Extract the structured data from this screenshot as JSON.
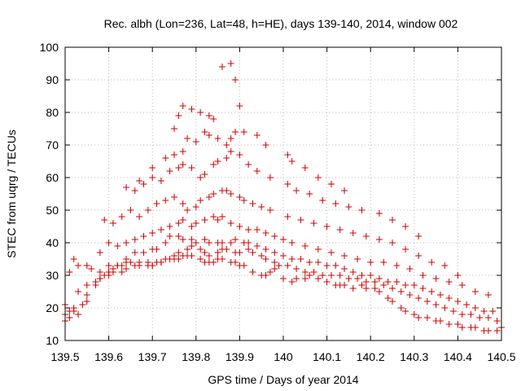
{
  "chart_data": {
    "type": "scatter",
    "title": "Rec. albh (Lon=236, Lat=48, h=HE), days 139-140, 2014, window 002",
    "xlabel": "GPS time / Days of year 2014",
    "ylabel": "STEC from uqrg / TECUs",
    "xlim": [
      139.5,
      140.5
    ],
    "ylim": [
      10,
      100
    ],
    "xticks": [
      139.5,
      139.6,
      139.7,
      139.8,
      139.9,
      140,
      140.1,
      140.2,
      140.3,
      140.4,
      140.5
    ],
    "xtick_labels": [
      "139.5",
      "139.6",
      "139.7",
      "139.8",
      "139.9",
      "140",
      "140.1",
      "140.2",
      "140.3",
      "140.4",
      "140.5"
    ],
    "yticks": [
      10,
      20,
      30,
      40,
      50,
      60,
      70,
      80,
      90,
      100
    ],
    "ytick_labels": [
      "10",
      "20",
      "30",
      "40",
      "50",
      "60",
      "70",
      "80",
      "90",
      "100"
    ],
    "grid": true,
    "marker": "+",
    "color": "#cc0000",
    "series": [
      {
        "x": [
          139.5,
          139.5,
          139.51,
          139.51,
          139.52,
          139.53,
          139.54,
          139.55,
          139.55,
          139.57,
          139.58,
          139.59,
          139.6,
          139.6,
          139.61,
          139.62,
          139.63,
          139.64,
          139.65,
          139.67,
          139.69,
          139.7,
          139.71,
          139.72,
          139.74,
          139.75,
          139.76,
          139.77,
          139.78,
          139.79,
          139.81,
          139.82,
          139.83,
          139.84,
          139.85,
          139.86,
          139.88,
          139.89,
          139.9,
          139.91,
          139.93,
          139.95,
          139.96,
          139.97,
          139.98,
          140.0,
          140.02,
          140.03,
          140.05,
          140.06,
          140.08,
          140.1,
          140.12,
          140.13,
          140.14,
          140.16,
          140.18,
          140.19,
          140.21,
          140.22,
          140.24,
          140.25,
          140.27,
          140.28,
          140.3,
          140.31,
          140.33,
          140.35,
          140.36,
          140.38,
          140.4,
          140.41,
          140.43,
          140.44,
          140.46,
          140.47,
          140.49,
          140.5,
          139.5,
          139.52,
          139.53,
          139.55,
          139.57,
          139.58,
          139.6,
          139.61,
          139.63,
          139.64,
          139.66,
          139.67,
          139.69,
          139.7,
          139.72,
          139.73,
          139.75,
          139.76,
          139.78,
          139.79,
          139.81,
          139.82,
          139.83,
          139.85,
          139.86,
          139.87,
          139.89,
          139.9,
          139.92,
          139.93,
          139.95,
          139.96,
          139.98,
          139.99,
          140.01,
          140.03,
          140.05,
          140.07,
          140.09,
          140.11,
          140.13,
          140.15,
          140.17,
          140.19,
          140.21,
          140.23,
          140.25,
          140.27,
          140.29,
          140.31,
          140.33,
          140.35,
          140.37,
          140.39,
          140.41,
          140.43,
          140.45,
          140.47,
          140.49,
          139.51,
          139.53,
          139.56,
          139.58,
          139.6,
          139.62,
          139.64,
          139.66,
          139.68,
          139.7,
          139.71,
          139.73,
          139.74,
          139.76,
          139.77,
          139.79,
          139.8,
          139.82,
          139.83,
          139.85,
          139.86,
          139.88,
          139.89,
          139.91,
          139.92,
          139.94,
          139.96,
          139.98,
          140.0,
          140.02,
          140.04,
          140.06,
          140.08,
          140.1,
          140.12,
          140.14,
          140.16,
          140.18,
          140.2,
          140.22,
          140.24,
          140.26,
          140.28,
          140.3,
          140.32,
          140.34,
          140.36,
          140.38,
          140.4,
          140.42,
          140.44,
          140.46,
          140.48,
          139.52,
          139.55,
          139.58,
          139.6,
          139.62,
          139.64,
          139.66,
          139.68,
          139.7,
          139.72,
          139.74,
          139.76,
          139.77,
          139.79,
          139.8,
          139.82,
          139.84,
          139.85,
          139.86,
          139.88,
          139.9,
          139.92,
          139.94,
          139.96,
          139.98,
          140.0,
          140.02,
          140.05,
          140.08,
          140.11,
          140.14,
          140.17,
          140.2,
          140.23,
          140.26,
          140.29,
          140.32,
          140.35,
          140.38,
          140.41,
          140.44,
          140.47,
          139.59,
          139.61,
          139.63,
          139.65,
          139.67,
          139.69,
          139.71,
          139.73,
          139.75,
          139.77,
          139.78,
          139.8,
          139.81,
          139.83,
          139.84,
          139.86,
          139.87,
          139.88,
          139.9,
          139.91,
          139.93,
          139.95,
          139.97,
          140.01,
          140.04,
          140.07,
          140.1,
          140.13,
          140.16,
          140.19,
          140.22,
          140.25,
          140.28,
          140.31,
          140.34,
          140.37,
          140.4,
          139.64,
          139.66,
          139.68,
          139.7,
          139.72,
          139.74,
          139.76,
          139.77,
          139.79,
          139.81,
          139.82,
          139.84,
          139.85,
          139.87,
          139.88,
          139.9,
          139.92,
          139.94,
          139.97,
          140.01,
          140.03,
          140.06,
          140.09,
          140.12,
          140.15,
          140.18,
          140.22,
          140.25,
          140.28,
          140.31,
          139.67,
          139.7,
          139.73,
          139.75,
          139.77,
          139.78,
          139.8,
          139.82,
          139.83,
          139.85,
          139.87,
          139.88,
          139.89,
          139.91,
          139.94,
          139.96,
          140.01,
          140.02,
          140.05,
          140.08,
          140.11,
          140.14,
          139.75,
          139.76,
          139.77,
          139.79,
          139.81,
          139.83,
          139.84,
          139.86,
          139.88,
          139.89,
          139.9
        ],
        "y": [
          18,
          16,
          19,
          17,
          20,
          18,
          21,
          22,
          24,
          27,
          29,
          30,
          31,
          31,
          32,
          33,
          33,
          34,
          34,
          34,
          33,
          33,
          34,
          34,
          35,
          35,
          35,
          36,
          36,
          36,
          35,
          34,
          34,
          34,
          35,
          35,
          34,
          34,
          33,
          33,
          31,
          30,
          30,
          31,
          32,
          29,
          28,
          29,
          29,
          30,
          29,
          28,
          27,
          27,
          27,
          26,
          27,
          26,
          26,
          25,
          23,
          22,
          20,
          19,
          18,
          17,
          17,
          16,
          16,
          15,
          15,
          14,
          14,
          14,
          13,
          13,
          13,
          14,
          21,
          19,
          25,
          27,
          28,
          29,
          30,
          31,
          31,
          32,
          33,
          33,
          34,
          33,
          34,
          35,
          36,
          37,
          38,
          39,
          38,
          37,
          36,
          37,
          38,
          38,
          37,
          37,
          38,
          37,
          36,
          35,
          34,
          33,
          33,
          32,
          31,
          31,
          30,
          30,
          30,
          29,
          29,
          28,
          28,
          27,
          26,
          25,
          24,
          23,
          22,
          21,
          20,
          19,
          18,
          18,
          17,
          17,
          16,
          31,
          33,
          32,
          31,
          33,
          33,
          35,
          37,
          37,
          38,
          38,
          40,
          42,
          42,
          41,
          41,
          40,
          41,
          40,
          40,
          40,
          40,
          41,
          40,
          40,
          39,
          38,
          37,
          36,
          35,
          35,
          34,
          34,
          33,
          33,
          32,
          31,
          30,
          30,
          29,
          28,
          28,
          27,
          27,
          26,
          25,
          24,
          23,
          22,
          21,
          20,
          19,
          19,
          35,
          33,
          37,
          40,
          39,
          40,
          41,
          42,
          43,
          44,
          45,
          46,
          47,
          45,
          46,
          47,
          48,
          47,
          48,
          46,
          45,
          44,
          44,
          43,
          42,
          41,
          40,
          39,
          38,
          37,
          36,
          35,
          34,
          34,
          33,
          32,
          30,
          29,
          28,
          27,
          25,
          24,
          47,
          46,
          48,
          50,
          48,
          50,
          52,
          53,
          54,
          52,
          50,
          51,
          53,
          54,
          55,
          56,
          56,
          55,
          54,
          53,
          52,
          51,
          50,
          48,
          47,
          46,
          45,
          44,
          43,
          42,
          41,
          40,
          38,
          36,
          34,
          33,
          30,
          57,
          56,
          58,
          60,
          59,
          62,
          63,
          64,
          63,
          60,
          61,
          64,
          65,
          66,
          68,
          67,
          64,
          62,
          60,
          58,
          56,
          55,
          53,
          52,
          51,
          50,
          49,
          47,
          45,
          42,
          59,
          63,
          66,
          67,
          68,
          72,
          71,
          74,
          73,
          72,
          70,
          72,
          74,
          74,
          73,
          70,
          67,
          65,
          63,
          60,
          58,
          56,
          75,
          79,
          82,
          81,
          80,
          79,
          78,
          94,
          95,
          90,
          82
        ]
      }
    ]
  }
}
